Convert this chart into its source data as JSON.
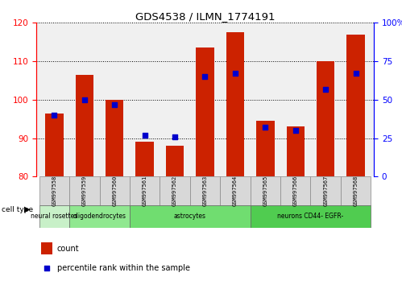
{
  "title": "GDS4538 / ILMN_1774191",
  "samples": [
    "GSM997558",
    "GSM997559",
    "GSM997560",
    "GSM997561",
    "GSM997562",
    "GSM997563",
    "GSM997564",
    "GSM997565",
    "GSM997566",
    "GSM997567",
    "GSM997568"
  ],
  "count_values": [
    96.5,
    106.5,
    100.0,
    89.0,
    88.0,
    113.5,
    117.5,
    94.5,
    93.0,
    110.0,
    117.0
  ],
  "percentile_values": [
    40,
    50,
    47,
    27,
    26,
    65,
    67,
    32,
    30,
    57,
    67
  ],
  "cell_type_ranges": [
    {
      "label": "neural rosettes",
      "start": 0,
      "end": 1,
      "color": "#c8f0c8"
    },
    {
      "label": "oligodendrocytes",
      "start": 1,
      "end": 3,
      "color": "#90e890"
    },
    {
      "label": "astrocytes",
      "start": 3,
      "end": 7,
      "color": "#70dd70"
    },
    {
      "label": "neurons CD44- EGFR-",
      "start": 7,
      "end": 11,
      "color": "#50cc50"
    }
  ],
  "ylim_left": [
    80,
    120
  ],
  "ylim_right": [
    0,
    100
  ],
  "yticks_left": [
    80,
    90,
    100,
    110,
    120
  ],
  "yticks_right": [
    0,
    25,
    50,
    75,
    100
  ],
  "bar_color": "#cc2200",
  "marker_color": "#0000cc",
  "sample_box_color": "#d8d8d8",
  "plot_bg_color": "#f0f0f0"
}
